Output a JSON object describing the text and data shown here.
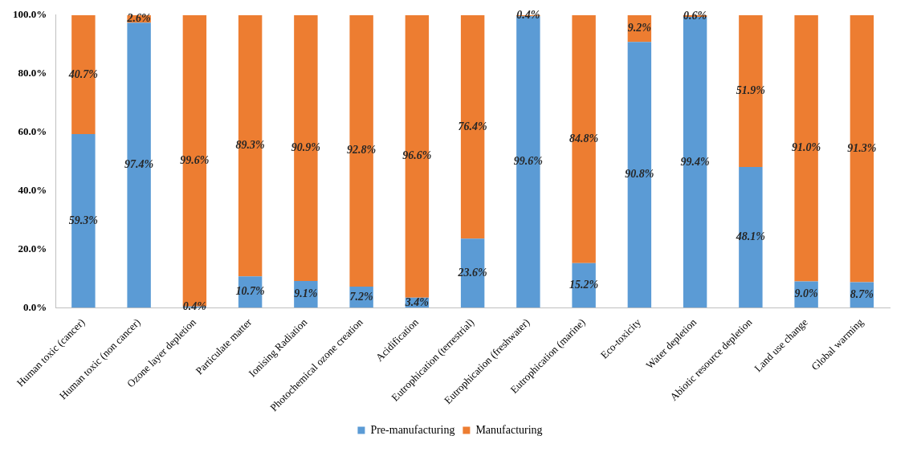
{
  "chart_data": {
    "type": "bar",
    "stacked": true,
    "categories": [
      "Human toxic (cancer)",
      "Human toxic (non cancer)",
      "Ozone layer depletion",
      "Particulate matter",
      "Ionising Radiation",
      "Photochemical ozone creation",
      "Acidification",
      "Eutrophication (terrestrial)",
      "Eutrophication (freshwater)",
      "Eutrophication (marine)",
      "Eco-toxicity",
      "Water depletion",
      "Abiotic resource depletion",
      "Land use change",
      "Global warming"
    ],
    "series": [
      {
        "name": "Pre-manufacturing",
        "color": "#5b9bd5",
        "values": [
          59.3,
          97.4,
          0.4,
          10.7,
          9.1,
          7.2,
          3.4,
          23.6,
          99.6,
          15.2,
          90.8,
          99.4,
          48.1,
          9.0,
          8.7
        ],
        "value_labels": [
          "59.3%",
          "97.4%",
          "0.4%",
          "10.7%",
          "9.1%",
          "7.2%",
          "3.4%",
          "23.6%",
          "99.6%",
          "15.2%",
          "90.8%",
          "99.4%",
          "48.1%",
          "9.0%",
          "8.7%"
        ]
      },
      {
        "name": "Manufacturing",
        "color": "#ed7d31",
        "values": [
          40.7,
          2.6,
          99.6,
          89.3,
          90.9,
          92.8,
          96.6,
          76.4,
          0.4,
          84.8,
          9.2,
          0.6,
          51.9,
          91.0,
          91.3
        ],
        "value_labels": [
          "40.7%",
          "2.6%",
          "99.6%",
          "89.3%",
          "90.9%",
          "92.8%",
          "96.6%",
          "76.4%",
          "0.4%",
          "84.8%",
          "9.2%",
          "0.6%",
          "51.9%",
          "91.0%",
          "91.3%"
        ]
      }
    ],
    "ylim": [
      0,
      100
    ],
    "yticks": [
      {
        "value": 0,
        "label": "0.0%"
      },
      {
        "value": 20,
        "label": "20.0%"
      },
      {
        "value": 40,
        "label": "40.0%"
      },
      {
        "value": 60,
        "label": "60.0%"
      },
      {
        "value": 80,
        "label": "80.0%"
      },
      {
        "value": 100,
        "label": "100.0%"
      }
    ],
    "grid": false,
    "legend": "bottom"
  }
}
